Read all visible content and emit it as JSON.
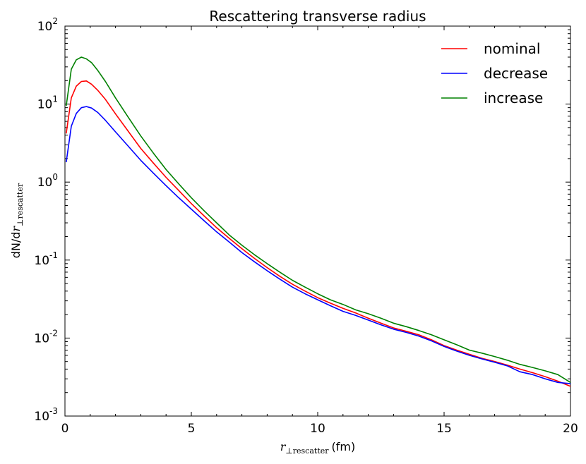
{
  "chart_data": {
    "type": "line",
    "title": "Rescattering transverse radius",
    "xlabel": {
      "var": "r",
      "sub": "⊥rescatter",
      "units": "(fm)"
    },
    "ylabel": {
      "prefix": "dN/d",
      "var": "r",
      "sub": "⊥rescatter"
    },
    "xscale": "linear",
    "yscale": "log",
    "xlim": [
      0,
      20
    ],
    "ylim": [
      0.001,
      100
    ],
    "xticks": [
      0,
      5,
      10,
      15,
      20
    ],
    "xtick_labels": [
      "0",
      "5",
      "10",
      "15",
      "20"
    ],
    "yticks": [
      {
        "value": 100,
        "base": "10",
        "exp": "2"
      },
      {
        "value": 10,
        "base": "10",
        "exp": "1"
      },
      {
        "value": 1,
        "base": "10",
        "exp": "0"
      },
      {
        "value": 0.1,
        "base": "10",
        "exp": "-1"
      },
      {
        "value": 0.01,
        "base": "10",
        "exp": "-2"
      },
      {
        "value": 0.001,
        "base": "10",
        "exp": "-3"
      }
    ],
    "legend_position": "top-right",
    "x": [
      0.05,
      0.25,
      0.45,
      0.65,
      0.85,
      1.05,
      1.3,
      1.6,
      2.0,
      2.5,
      3.0,
      3.5,
      4.0,
      4.5,
      5.0,
      5.5,
      6.0,
      6.5,
      7.0,
      7.5,
      8.0,
      8.5,
      9.0,
      9.5,
      10.0,
      10.5,
      11.0,
      11.5,
      12.0,
      12.5,
      13.0,
      13.5,
      14.0,
      14.5,
      15.0,
      15.5,
      16.0,
      16.5,
      17.0,
      17.5,
      18.0,
      18.5,
      19.0,
      19.5,
      20.0
    ],
    "series": [
      {
        "name": "nominal",
        "color": "#ff0000",
        "values": [
          4.2,
          12,
          17,
          19.5,
          19.8,
          18,
          15,
          11.5,
          7.5,
          4.5,
          2.7,
          1.75,
          1.15,
          0.78,
          0.53,
          0.37,
          0.26,
          0.19,
          0.14,
          0.105,
          0.08,
          0.062,
          0.049,
          0.04,
          0.033,
          0.028,
          0.024,
          0.021,
          0.018,
          0.0155,
          0.0135,
          0.0122,
          0.011,
          0.0095,
          0.008,
          0.007,
          0.0062,
          0.0055,
          0.005,
          0.0045,
          0.004,
          0.0036,
          0.0032,
          0.0028,
          0.0024
        ]
      },
      {
        "name": "decrease",
        "color": "#0000ff",
        "values": [
          1.8,
          5.2,
          7.6,
          9.0,
          9.3,
          8.9,
          7.8,
          6.2,
          4.4,
          2.9,
          1.9,
          1.3,
          0.9,
          0.63,
          0.45,
          0.32,
          0.23,
          0.17,
          0.125,
          0.095,
          0.073,
          0.057,
          0.045,
          0.037,
          0.031,
          0.026,
          0.022,
          0.0195,
          0.017,
          0.0148,
          0.013,
          0.0118,
          0.0106,
          0.0092,
          0.0078,
          0.0068,
          0.006,
          0.0054,
          0.0049,
          0.0044,
          0.0037,
          0.0034,
          0.003,
          0.0027,
          0.0026
        ]
      },
      {
        "name": "increase",
        "color": "#008000",
        "values": [
          9.5,
          28,
          37,
          40,
          38,
          34,
          27,
          19.5,
          12,
          6.8,
          3.9,
          2.35,
          1.45,
          0.95,
          0.63,
          0.43,
          0.3,
          0.21,
          0.155,
          0.117,
          0.09,
          0.07,
          0.055,
          0.045,
          0.037,
          0.031,
          0.027,
          0.023,
          0.0205,
          0.018,
          0.0155,
          0.014,
          0.0125,
          0.011,
          0.0095,
          0.0082,
          0.007,
          0.0064,
          0.0058,
          0.0052,
          0.0046,
          0.0042,
          0.0038,
          0.0034,
          0.0027
        ]
      }
    ]
  }
}
